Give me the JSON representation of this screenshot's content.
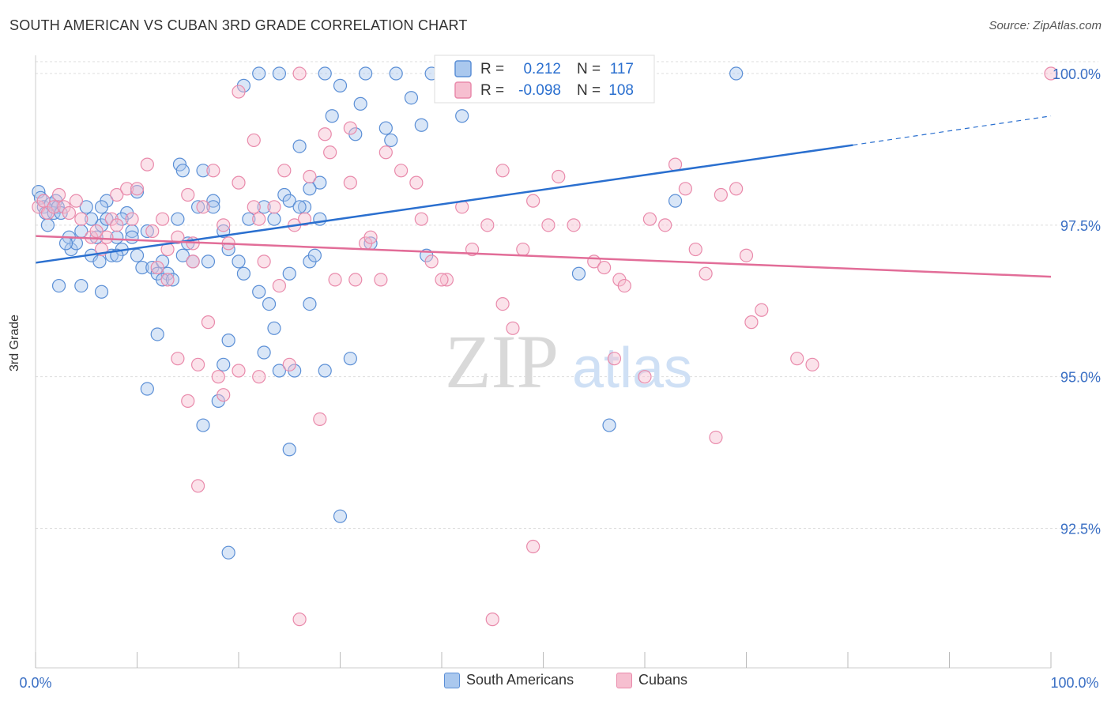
{
  "title": "SOUTH AMERICAN VS CUBAN 3RD GRADE CORRELATION CHART",
  "source": "Source: ZipAtlas.com",
  "watermark": {
    "zip": "ZIP",
    "atlas": "atlas"
  },
  "colors": {
    "blue_fill": "#aac8ee",
    "blue_stroke": "#5b8fd6",
    "blue_line": "#2a6fcf",
    "pink_fill": "#f6bfd0",
    "pink_stroke": "#e98aab",
    "pink_line": "#e26d98",
    "axis_text": "#3a6fc4",
    "grid": "#dddddd"
  },
  "legend": {
    "rows": [
      {
        "r_label": "R =",
        "r_value": "0.212",
        "n_label": "N =",
        "n_value": "117"
      },
      {
        "r_label": "R =",
        "r_value": "-0.098",
        "n_label": "N =",
        "n_value": "108"
      }
    ]
  },
  "bottom_legend": [
    "South Americans",
    "Cubans"
  ],
  "chart_data": {
    "type": "scatter",
    "title": "SOUTH AMERICAN VS CUBAN 3RD GRADE CORRELATION CHART",
    "xlabel": "",
    "ylabel": "3rd Grade",
    "xlim": [
      0,
      100
    ],
    "ylim": [
      90.2,
      100.3
    ],
    "x_tick_labels": [
      "0.0%",
      "100.0%"
    ],
    "y_ticks": [
      92.5,
      95.0,
      97.5,
      100.0
    ],
    "y_tick_labels": [
      "92.5%",
      "95.0%",
      "97.5%",
      "100.0%"
    ],
    "grid": true,
    "legend_position": "top-center",
    "series": [
      {
        "name": "South Americans",
        "R": 0.212,
        "N": 117,
        "trend": {
          "x0": 0,
          "y0": 96.88,
          "x1": 80.5,
          "y1": 98.82,
          "dashed_to_x": 100,
          "dashed_to_y": 99.3
        },
        "points": [
          [
            0.3,
            98.05
          ],
          [
            0.5,
            97.95
          ],
          [
            0.8,
            97.8
          ],
          [
            1.0,
            97.7
          ],
          [
            1.2,
            97.5
          ],
          [
            1.5,
            97.85
          ],
          [
            1.8,
            97.7
          ],
          [
            2.0,
            97.9
          ],
          [
            2.2,
            97.8
          ],
          [
            2.5,
            97.7
          ],
          [
            3.3,
            97.3
          ],
          [
            3.5,
            97.1
          ],
          [
            4.0,
            97.2
          ],
          [
            4.5,
            97.4
          ],
          [
            5.0,
            97.8
          ],
          [
            5.5,
            97.0
          ],
          [
            6.0,
            97.3
          ],
          [
            6.3,
            96.9
          ],
          [
            6.5,
            97.5
          ],
          [
            7.0,
            97.6
          ],
          [
            7.5,
            97.0
          ],
          [
            8.0,
            97.3
          ],
          [
            8.5,
            97.1
          ],
          [
            9.0,
            97.7
          ],
          [
            9.5,
            97.4
          ],
          [
            10.0,
            97.0
          ],
          [
            10.5,
            96.8
          ],
          [
            11.0,
            97.4
          ],
          [
            11.5,
            96.8
          ],
          [
            12.0,
            96.7
          ],
          [
            12.5,
            96.9
          ],
          [
            13.0,
            96.7
          ],
          [
            14.0,
            97.6
          ],
          [
            14.5,
            97.0
          ],
          [
            15.0,
            97.2
          ],
          [
            15.5,
            96.9
          ],
          [
            16.0,
            97.8
          ],
          [
            17.0,
            96.9
          ],
          [
            17.5,
            97.9
          ],
          [
            18.5,
            97.4
          ],
          [
            19.0,
            97.1
          ],
          [
            20.0,
            96.9
          ],
          [
            20.5,
            96.7
          ],
          [
            21.0,
            97.6
          ],
          [
            22.0,
            96.4
          ],
          [
            22.5,
            97.8
          ],
          [
            23.5,
            97.6
          ],
          [
            24.5,
            98.0
          ],
          [
            25.0,
            96.7
          ],
          [
            27.0,
            96.9
          ],
          [
            27.5,
            97.0
          ],
          [
            28.0,
            97.6
          ],
          [
            2.3,
            96.5
          ],
          [
            4.5,
            96.5
          ],
          [
            6.5,
            96.4
          ],
          [
            12.0,
            95.7
          ],
          [
            19.0,
            95.6
          ],
          [
            22.5,
            95.4
          ],
          [
            24.0,
            95.1
          ],
          [
            25.5,
            95.1
          ],
          [
            28.5,
            95.1
          ],
          [
            31.0,
            95.3
          ],
          [
            11.0,
            94.8
          ],
          [
            18.0,
            94.6
          ],
          [
            18.5,
            95.2
          ],
          [
            16.5,
            94.2
          ],
          [
            25.0,
            93.8
          ],
          [
            30.0,
            92.7
          ],
          [
            19.0,
            92.1
          ],
          [
            7.0,
            97.9
          ],
          [
            5.5,
            97.6
          ],
          [
            8.0,
            97.0
          ],
          [
            10.0,
            98.05
          ],
          [
            14.2,
            98.5
          ],
          [
            14.5,
            98.4
          ],
          [
            16.5,
            98.4
          ],
          [
            17.5,
            97.8
          ],
          [
            26.0,
            98.8
          ],
          [
            26.5,
            97.8
          ],
          [
            28.0,
            98.2
          ],
          [
            27.0,
            98.1
          ],
          [
            29.2,
            99.3
          ],
          [
            31.5,
            99.0
          ],
          [
            32.0,
            99.5
          ],
          [
            34.5,
            99.1
          ],
          [
            35.0,
            98.9
          ],
          [
            37.0,
            99.6
          ],
          [
            38.0,
            99.15
          ],
          [
            20.5,
            99.8
          ],
          [
            22.0,
            100.0
          ],
          [
            24.0,
            100.0
          ],
          [
            28.5,
            100.0
          ],
          [
            30.0,
            99.8
          ],
          [
            32.5,
            100.0
          ],
          [
            35.5,
            100.0
          ],
          [
            39.0,
            100.0
          ],
          [
            40.0,
            99.7
          ],
          [
            42.0,
            99.3
          ],
          [
            42.5,
            99.7
          ],
          [
            45.0,
            99.8
          ],
          [
            53.5,
            96.7
          ],
          [
            56.5,
            94.2
          ],
          [
            63.0,
            97.9
          ],
          [
            69.0,
            100.0
          ],
          [
            38.5,
            97.0
          ],
          [
            23.0,
            96.2
          ],
          [
            27.0,
            96.2
          ],
          [
            25.0,
            97.9
          ],
          [
            26.0,
            97.8
          ],
          [
            33.0,
            97.2
          ],
          [
            12.5,
            96.6
          ],
          [
            13.5,
            96.6
          ],
          [
            23.5,
            95.8
          ],
          [
            9.5,
            97.3
          ],
          [
            3.0,
            97.2
          ],
          [
            6.5,
            97.8
          ],
          [
            8.5,
            97.6
          ]
        ]
      },
      {
        "name": "Cubans",
        "R": -0.098,
        "N": 108,
        "trend": {
          "x0": 0,
          "y0": 97.32,
          "x1": 100,
          "y1": 96.65
        },
        "points": [
          [
            0.3,
            97.8
          ],
          [
            0.8,
            97.9
          ],
          [
            1.2,
            97.7
          ],
          [
            1.8,
            97.8
          ],
          [
            2.3,
            98.0
          ],
          [
            2.8,
            97.8
          ],
          [
            3.3,
            97.7
          ],
          [
            4.0,
            97.9
          ],
          [
            4.5,
            97.6
          ],
          [
            5.5,
            97.3
          ],
          [
            6.5,
            97.1
          ],
          [
            7.0,
            97.3
          ],
          [
            7.5,
            97.6
          ],
          [
            8.0,
            98.0
          ],
          [
            9.0,
            98.1
          ],
          [
            9.5,
            97.6
          ],
          [
            10.0,
            98.1
          ],
          [
            11.0,
            98.5
          ],
          [
            11.5,
            97.4
          ],
          [
            12.5,
            97.6
          ],
          [
            13.0,
            97.1
          ],
          [
            14.0,
            97.3
          ],
          [
            15.0,
            98.0
          ],
          [
            15.5,
            97.2
          ],
          [
            16.5,
            97.8
          ],
          [
            17.5,
            98.4
          ],
          [
            18.5,
            97.5
          ],
          [
            19.0,
            97.2
          ],
          [
            20.0,
            98.2
          ],
          [
            21.5,
            97.8
          ],
          [
            22.0,
            97.6
          ],
          [
            23.5,
            97.8
          ],
          [
            24.5,
            98.4
          ],
          [
            25.5,
            97.5
          ],
          [
            26.5,
            97.6
          ],
          [
            27.0,
            98.3
          ],
          [
            28.5,
            99.0
          ],
          [
            29.0,
            98.7
          ],
          [
            31.0,
            98.2
          ],
          [
            32.5,
            97.2
          ],
          [
            33.0,
            97.3
          ],
          [
            34.5,
            98.7
          ],
          [
            36.0,
            98.4
          ],
          [
            37.5,
            98.2
          ],
          [
            38.0,
            97.6
          ],
          [
            39.0,
            96.9
          ],
          [
            40.5,
            96.6
          ],
          [
            42.0,
            97.8
          ],
          [
            43.0,
            97.1
          ],
          [
            44.5,
            97.5
          ],
          [
            46.0,
            98.4
          ],
          [
            48.0,
            97.1
          ],
          [
            49.0,
            97.9
          ],
          [
            50.5,
            97.5
          ],
          [
            51.5,
            98.3
          ],
          [
            53.0,
            97.5
          ],
          [
            55.0,
            96.9
          ],
          [
            56.0,
            96.8
          ],
          [
            57.5,
            96.6
          ],
          [
            58.0,
            96.5
          ],
          [
            60.5,
            97.6
          ],
          [
            62.0,
            97.5
          ],
          [
            63.0,
            98.5
          ],
          [
            64.0,
            98.1
          ],
          [
            65.0,
            97.1
          ],
          [
            66.0,
            96.7
          ],
          [
            67.5,
            98.0
          ],
          [
            69.0,
            98.1
          ],
          [
            70.0,
            97.0
          ],
          [
            71.5,
            96.1
          ],
          [
            6.0,
            97.4
          ],
          [
            8.0,
            97.5
          ],
          [
            12.0,
            96.8
          ],
          [
            13.0,
            96.6
          ],
          [
            15.5,
            96.9
          ],
          [
            17.0,
            95.9
          ],
          [
            16.0,
            95.2
          ],
          [
            14.0,
            95.3
          ],
          [
            15.0,
            94.6
          ],
          [
            18.0,
            95.0
          ],
          [
            18.5,
            94.7
          ],
          [
            20.0,
            95.1
          ],
          [
            22.0,
            95.0
          ],
          [
            25.0,
            95.2
          ],
          [
            28.0,
            94.3
          ],
          [
            22.5,
            96.9
          ],
          [
            24.0,
            96.5
          ],
          [
            29.5,
            96.6
          ],
          [
            31.5,
            96.6
          ],
          [
            34.0,
            96.6
          ],
          [
            40.0,
            96.6
          ],
          [
            46.0,
            96.2
          ],
          [
            47.0,
            95.8
          ],
          [
            57.0,
            95.3
          ],
          [
            60.0,
            95.0
          ],
          [
            67.0,
            94.0
          ],
          [
            70.5,
            95.9
          ],
          [
            75.0,
            95.3
          ],
          [
            76.5,
            95.2
          ],
          [
            16.0,
            93.2
          ],
          [
            26.0,
            91.0
          ],
          [
            45.0,
            91.0
          ],
          [
            49.0,
            92.2
          ],
          [
            100.0,
            100.0
          ],
          [
            26.0,
            100.0
          ],
          [
            20.0,
            99.7
          ],
          [
            21.5,
            98.9
          ],
          [
            31.0,
            99.1
          ]
        ]
      }
    ]
  }
}
